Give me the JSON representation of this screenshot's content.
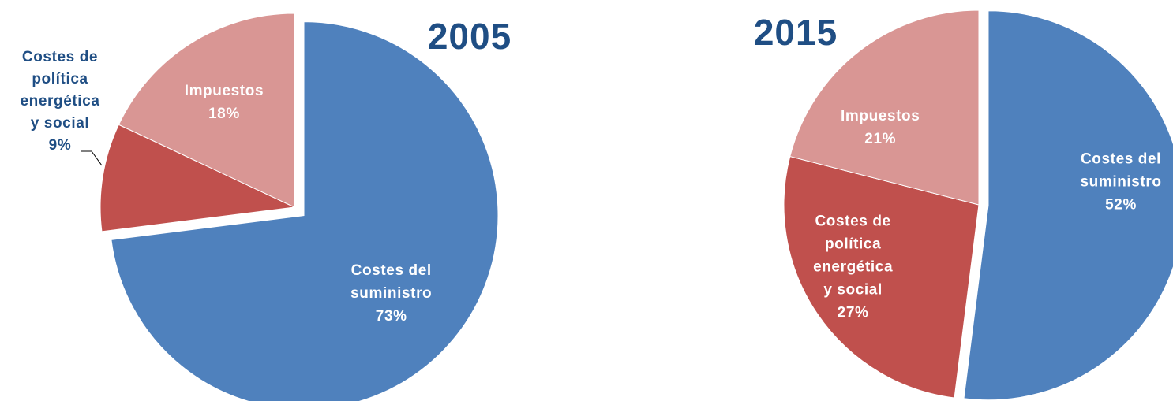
{
  "chart_data": [
    {
      "type": "pie",
      "title": "2005",
      "title_color": "#1f4e84",
      "start_angle_deg": 0,
      "direction": "clockwise",
      "slices": [
        {
          "label": "Costes del suministro",
          "value": 73,
          "display": [
            "Costes del",
            "suministro",
            "73%"
          ],
          "color": "#4f81bd",
          "label_color": "#ffffff",
          "exploded": true,
          "label_placement": "inside"
        },
        {
          "label": "Costes de política energética y social",
          "value": 9,
          "display": [
            "Costes de",
            "política",
            "energética",
            "y social",
            "9%"
          ],
          "color": "#c0504d",
          "label_color": "#1f4e84",
          "exploded": false,
          "label_placement": "outside-left"
        },
        {
          "label": "Impuestos",
          "value": 18,
          "display": [
            "Impuestos",
            "18%"
          ],
          "color": "#d99694",
          "label_color": "#ffffff",
          "exploded": false,
          "label_placement": "inside"
        }
      ]
    },
    {
      "type": "pie",
      "title": "2015",
      "title_color": "#1f4e84",
      "start_angle_deg": 0,
      "direction": "clockwise",
      "slices": [
        {
          "label": "Costes del suministro",
          "value": 52,
          "display": [
            "Costes del",
            "suministro",
            "52%"
          ],
          "color": "#4f81bd",
          "label_color": "#ffffff",
          "exploded": true,
          "label_placement": "inside"
        },
        {
          "label": "Costes de política energética y social",
          "value": 27,
          "display": [
            "Costes de",
            "política",
            "energética",
            "y social",
            "27%"
          ],
          "color": "#c0504d",
          "label_color": "#ffffff",
          "exploded": false,
          "label_placement": "inside"
        },
        {
          "label": "Impuestos",
          "value": 21,
          "display": [
            "Impuestos",
            "21%"
          ],
          "color": "#d99694",
          "label_color": "#ffffff",
          "exploded": false,
          "label_placement": "inside"
        }
      ]
    }
  ]
}
